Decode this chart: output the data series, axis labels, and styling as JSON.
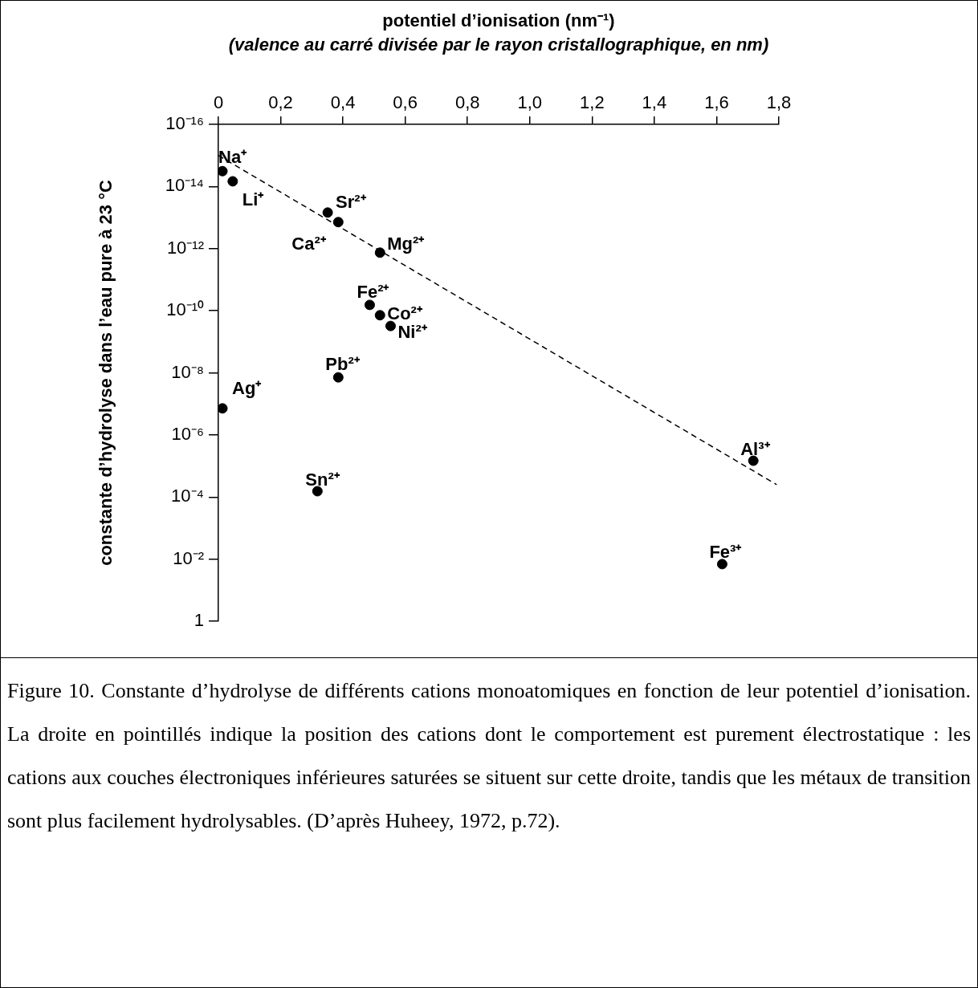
{
  "chart_data": {
    "type": "scatter",
    "title": "potentiel d’ionisation (nm⁻¹)",
    "subtitle": "(valence au carré divisée par le rayon cristallographique, en nm)",
    "ylabel": "constante d’hydrolyse dans l’eau pure à 23 °C",
    "log": "y",
    "grid": false,
    "legend": false,
    "marker": "circle",
    "xlim": [
      0,
      1.8
    ],
    "xticks": [
      {
        "value": 0,
        "label": "0"
      },
      {
        "value": 0.2,
        "label": "0,2"
      },
      {
        "value": 0.4,
        "label": "0,4"
      },
      {
        "value": 0.6,
        "label": "0,6"
      },
      {
        "value": 0.8,
        "label": "0,8"
      },
      {
        "value": 1.0,
        "label": "1,0"
      },
      {
        "value": 1.2,
        "label": "1,2"
      },
      {
        "value": 1.4,
        "label": "1,4"
      },
      {
        "value": 1.6,
        "label": "1,6"
      },
      {
        "value": 1.8,
        "label": "1,8"
      }
    ],
    "ylim": [
      1,
      1e-16
    ],
    "yticks": [
      {
        "value": 1e-16,
        "label": "10⁻¹⁶"
      },
      {
        "value": 1e-14,
        "label": "10⁻¹⁴"
      },
      {
        "value": 1e-12,
        "label": "10⁻¹²"
      },
      {
        "value": 1e-10,
        "label": "10⁻¹⁰"
      },
      {
        "value": 1e-08,
        "label": "10⁻⁸"
      },
      {
        "value": 1e-06,
        "label": "10⁻⁶"
      },
      {
        "value": 0.0001,
        "label": "10⁻⁴"
      },
      {
        "value": 0.01,
        "label": "10⁻²"
      },
      1
    ],
    "x": [
      0.013,
      0.046,
      0.351,
      0.385,
      0.519,
      0.486,
      0.519,
      0.553,
      0.385,
      0.013,
      0.318,
      1.718,
      1.618
    ],
    "series": [
      {
        "color": "#000000",
        "values": [
          3.2e-15,
          6.8e-15,
          6.9e-14,
          1.4e-13,
          1.35e-12,
          6.5e-11,
          1.4e-10,
          3.1e-10,
          1.4e-08,
          1.4e-07,
          6.5e-05,
          6.8e-06,
          0.0145
        ]
      },
      {
        "type": "line",
        "color": "#000000",
        "line_style": "dashed",
        "marker": "none",
        "x": [
          0,
          1.793
        ],
        "values": [
          1e-15,
          4e-05
        ]
      }
    ],
    "annotations": [
      {
        "text": "Na⁺",
        "x": 0.013,
        "y": 3.2e-15
      },
      {
        "text": "Li⁺",
        "x": 0.046,
        "y": 6.8e-15
      },
      {
        "text": "Sr²⁺",
        "x": 0.351,
        "y": 6.9e-14
      },
      {
        "text": "Ca²⁺",
        "x": 0.385,
        "y": 1.4e-13
      },
      {
        "text": "Mg²⁺",
        "x": 0.519,
        "y": 1.35e-12
      },
      {
        "text": "Fe²⁺",
        "x": 0.486,
        "y": 6.5e-11
      },
      {
        "text": "Co²⁺",
        "x": 0.519,
        "y": 1.4e-10
      },
      {
        "text": "Ni²⁺",
        "x": 0.553,
        "y": 3.1e-10
      },
      {
        "text": "Pb²⁺",
        "x": 0.385,
        "y": 1.4e-08
      },
      {
        "text": "Ag⁺",
        "x": 0.013,
        "y": 1.4e-07
      },
      {
        "text": "Sn²⁺",
        "x": 0.318,
        "y": 6.5e-05
      },
      {
        "text": "Al³⁺",
        "x": 1.718,
        "y": 6.8e-06
      },
      {
        "text": "Fe³⁺",
        "x": 1.618,
        "y": 0.0145
      },
      "Figure 10. Constante d’hydrolyse de différents cations monoatomiques en fonction de leur potentiel d’ionisation. La droite en pointillés indique la position des cations dont le comportement est purement électrostatique : les cations aux couches électroniques inférieures saturées se situent sur cette droite, tandis que les métaux de transition sont plus facilement hydrolysables. (D’après Huheey, 1972, p.72)."
    ]
  }
}
